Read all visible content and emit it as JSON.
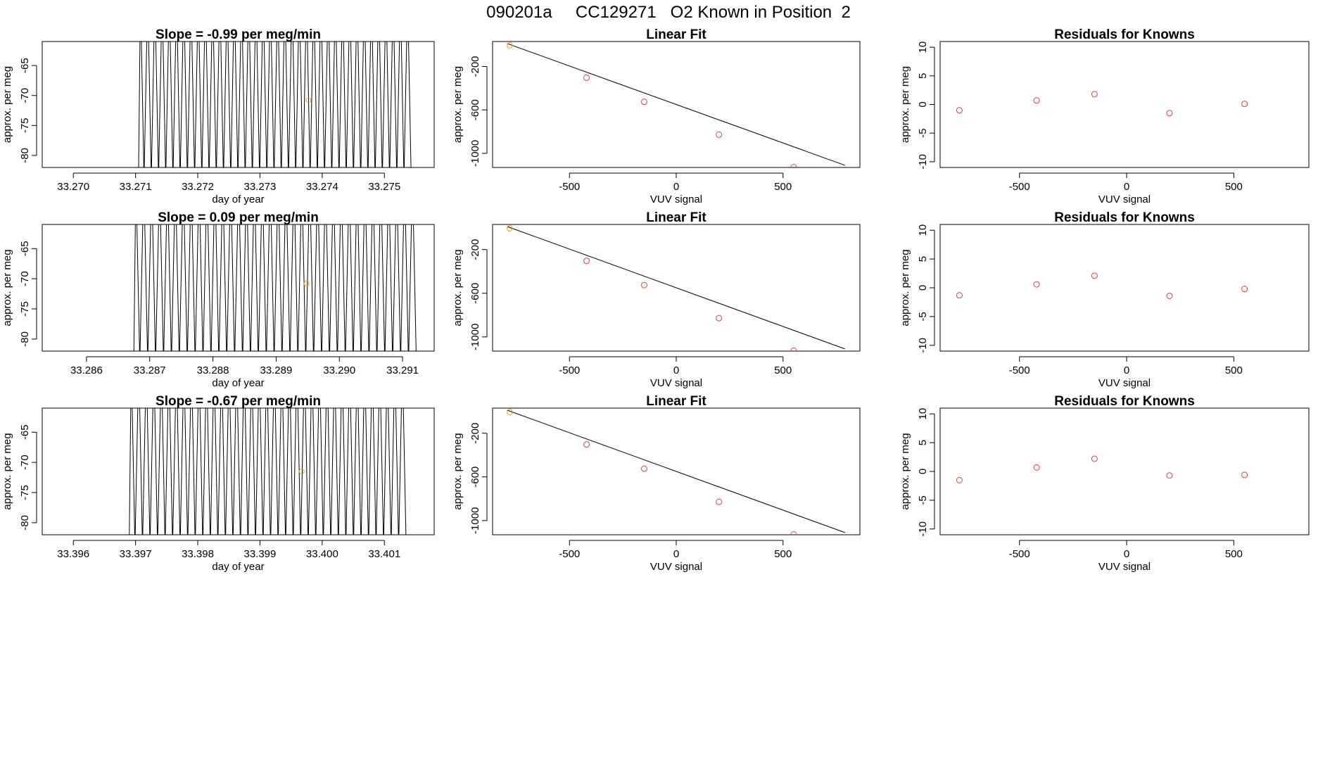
{
  "figure": {
    "title": "090201a     CC129271   O2 Known in Position  2"
  },
  "colors": {
    "line": "#000000",
    "points": "#d9413d",
    "highlight": "#e8a126",
    "axis": "#000000"
  },
  "chart_data": [
    {
      "type": "line",
      "title": "Slope =  -0.99  per meg/min",
      "xlabel": "day of year",
      "ylabel": "approx. per meg",
      "xticks": [
        "33.270",
        "33.271",
        "33.272",
        "33.273",
        "33.274",
        "33.275"
      ],
      "xtick_values": [
        33.27,
        33.271,
        33.272,
        33.273,
        33.274,
        33.275
      ],
      "yticks": [
        "-65",
        "-70",
        "-75",
        "-80"
      ],
      "ytick_values": [
        -65,
        -70,
        -75,
        -80
      ],
      "xlim": [
        33.2695,
        33.2758
      ],
      "ylim": [
        -82,
        -61
      ],
      "baseline": -82,
      "x_start": 33.27105,
      "x_end": 33.27546,
      "n_cycles": 38,
      "min_level": -82,
      "max_level": -61,
      "highlight_point": [
        33.27378,
        -70.8
      ]
    },
    {
      "type": "scatter",
      "title": "Linear Fit",
      "xlabel": "VUV signal",
      "ylabel": "approx. per meg",
      "xticks": [
        "-500",
        "0",
        "500"
      ],
      "xtick_values": [
        -500,
        0,
        500
      ],
      "yticks": [
        "-200",
        "-600",
        "-1000"
      ],
      "ytick_values": [
        -200,
        -600,
        -1000
      ],
      "xlim": [
        -860,
        860
      ],
      "ylim": [
        -1130,
        30
      ],
      "points": [
        [
          -780,
          -5
        ],
        [
          -420,
          -303
        ],
        [
          -150,
          -525
        ],
        [
          200,
          -828
        ],
        [
          550,
          -1127
        ]
      ],
      "fit_line": [
        [
          -790,
          10
        ],
        [
          790,
          -1110
        ]
      ]
    },
    {
      "type": "scatter",
      "title": "Residuals for Knowns",
      "xlabel": "VUV signal",
      "ylabel": "approx. per meg",
      "xticks": [
        "-500",
        "0",
        "500"
      ],
      "xtick_values": [
        -500,
        0,
        500
      ],
      "yticks": [
        "10",
        "5",
        "0",
        "-5",
        "-10"
      ],
      "ytick_values": [
        10,
        5,
        0,
        -5,
        -10
      ],
      "xlim": [
        -870,
        850
      ],
      "ylim": [
        -11,
        11
      ],
      "points": [
        [
          -780,
          -1.0
        ],
        [
          -420,
          0.7
        ],
        [
          -150,
          1.8
        ],
        [
          200,
          -1.5
        ],
        [
          550,
          0.1
        ]
      ]
    },
    {
      "type": "line",
      "title": "Slope =  0.09  per meg/min",
      "xlabel": "day of year",
      "ylabel": "approx. per meg",
      "xticks": [
        "33.286",
        "33.287",
        "33.288",
        "33.289",
        "33.290",
        "33.291"
      ],
      "xtick_values": [
        33.286,
        33.287,
        33.288,
        33.289,
        33.29,
        33.291
      ],
      "yticks": [
        "-65",
        "-70",
        "-75",
        "-80"
      ],
      "ytick_values": [
        -65,
        -70,
        -75,
        -80
      ],
      "xlim": [
        33.2853,
        33.2915
      ],
      "ylim": [
        -82,
        -61
      ],
      "baseline": -82,
      "x_start": 33.28675,
      "x_end": 33.29125,
      "n_cycles": 36,
      "min_level": -82,
      "max_level": -61,
      "highlight_point": [
        33.28948,
        -70.8
      ]
    },
    {
      "type": "scatter",
      "title": "Linear Fit",
      "xlabel": "VUV signal",
      "ylabel": "approx. per meg",
      "xticks": [
        "-500",
        "0",
        "500"
      ],
      "xtick_values": [
        -500,
        0,
        500
      ],
      "yticks": [
        "-200",
        "-600",
        "-1000"
      ],
      "ytick_values": [
        -200,
        -600,
        -1000
      ],
      "xlim": [
        -860,
        860
      ],
      "ylim": [
        -1130,
        30
      ],
      "points": [
        [
          -780,
          -5
        ],
        [
          -420,
          -303
        ],
        [
          -150,
          -525
        ],
        [
          200,
          -828
        ],
        [
          550,
          -1127
        ]
      ],
      "fit_line": [
        [
          -790,
          10
        ],
        [
          790,
          -1110
        ]
      ]
    },
    {
      "type": "scatter",
      "title": "Residuals for Knowns",
      "xlabel": "VUV signal",
      "ylabel": "approx. per meg",
      "xticks": [
        "-500",
        "0",
        "500"
      ],
      "xtick_values": [
        -500,
        0,
        500
      ],
      "yticks": [
        "10",
        "5",
        "0",
        "-5",
        "-10"
      ],
      "ytick_values": [
        10,
        5,
        0,
        -5,
        -10
      ],
      "xlim": [
        -870,
        850
      ],
      "ylim": [
        -11,
        11
      ],
      "points": [
        [
          -780,
          -1.3
        ],
        [
          -420,
          0.6
        ],
        [
          -150,
          2.1
        ],
        [
          200,
          -1.4
        ],
        [
          550,
          -0.2
        ]
      ]
    },
    {
      "type": "line",
      "title": "Slope =  -0.67  per meg/min",
      "xlabel": "day of year",
      "ylabel": "approx. per meg",
      "xticks": [
        "33.396",
        "33.397",
        "33.398",
        "33.399",
        "33.400",
        "33.401"
      ],
      "xtick_values": [
        33.396,
        33.397,
        33.398,
        33.399,
        33.4,
        33.401
      ],
      "yticks": [
        "-65",
        "-70",
        "-75",
        "-80"
      ],
      "ytick_values": [
        -65,
        -70,
        -75,
        -80
      ],
      "xlim": [
        33.3955,
        33.4018
      ],
      "ylim": [
        -82,
        -61
      ],
      "baseline": -82,
      "x_start": 33.3969,
      "x_end": 33.40138,
      "n_cycles": 37,
      "min_level": -82,
      "max_level": -61,
      "highlight_point": [
        33.39967,
        -71.5
      ]
    },
    {
      "type": "scatter",
      "title": "Linear Fit",
      "xlabel": "VUV signal",
      "ylabel": "approx. per meg",
      "xticks": [
        "-500",
        "0",
        "500"
      ],
      "xtick_values": [
        -500,
        0,
        500
      ],
      "yticks": [
        "-200",
        "-600",
        "-1000"
      ],
      "ytick_values": [
        -200,
        -600,
        -1000
      ],
      "xlim": [
        -860,
        860
      ],
      "ylim": [
        -1130,
        30
      ],
      "points": [
        [
          -780,
          -5
        ],
        [
          -420,
          -303
        ],
        [
          -150,
          -525
        ],
        [
          200,
          -828
        ],
        [
          550,
          -1127
        ]
      ],
      "fit_line": [
        [
          -790,
          10
        ],
        [
          790,
          -1110
        ]
      ]
    },
    {
      "type": "scatter",
      "title": "Residuals for Knowns",
      "xlabel": "VUV signal",
      "ylabel": "approx. per meg",
      "xticks": [
        "-500",
        "0",
        "500"
      ],
      "xtick_values": [
        -500,
        0,
        500
      ],
      "yticks": [
        "10",
        "5",
        "0",
        "-5",
        "-10"
      ],
      "ytick_values": [
        10,
        5,
        0,
        -5,
        -10
      ],
      "xlim": [
        -870,
        850
      ],
      "ylim": [
        -11,
        11
      ],
      "points": [
        [
          -780,
          -1.5
        ],
        [
          -420,
          0.7
        ],
        [
          -150,
          2.2
        ],
        [
          200,
          -0.7
        ],
        [
          550,
          -0.6
        ]
      ]
    }
  ]
}
